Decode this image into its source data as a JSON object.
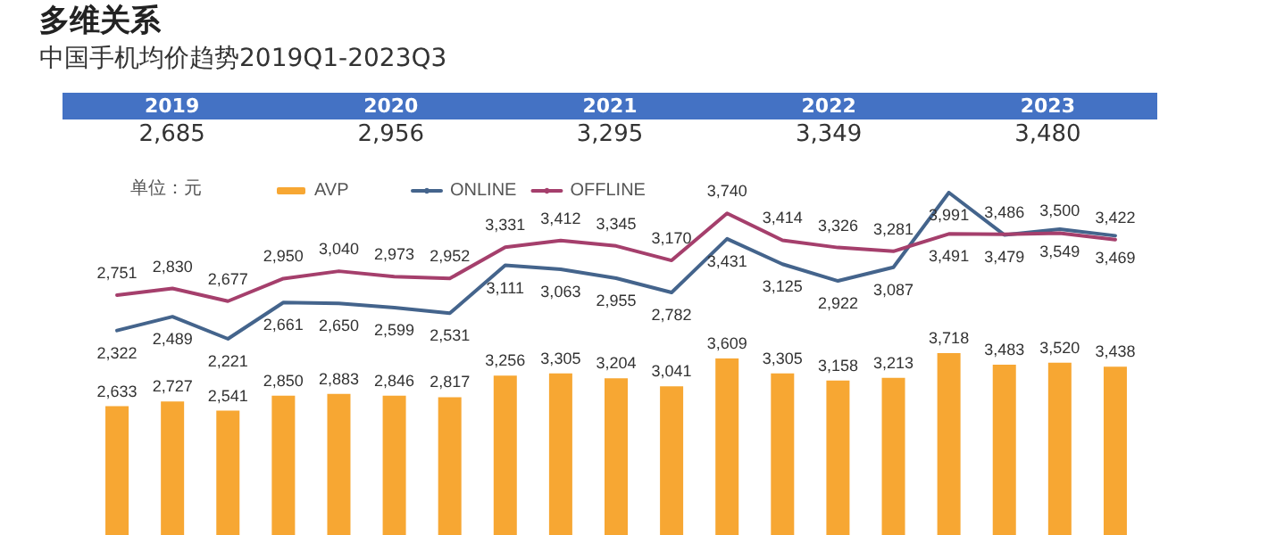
{
  "chart_data": [
    {
      "type": "line",
      "title": "多维关系",
      "subtitle": "中国手机均价趋势2019Q1-2023Q3",
      "legend_title": "单位：元",
      "annotations": [
        "2019",
        "2,685",
        "2020",
        "2,956",
        "2021",
        "3,295",
        "2022",
        "3,349",
        "2023",
        "3,480"
      ],
      "categories": [
        null,
        null,
        null,
        null,
        null,
        null,
        null,
        null,
        null,
        null,
        null,
        null,
        null,
        null,
        null,
        null,
        null,
        null,
        null
      ],
      "series": [
        {
          "name": "ONLINE",
          "color": "#44648c",
          "values": [
            2322,
            2489,
            2221,
            2661,
            2650,
            2599,
            2531,
            3111,
            3063,
            2955,
            2782,
            3431,
            3125,
            2922,
            3087,
            3991,
            3479,
            3549,
            3469
          ],
          "value_labels": [
            "2,322",
            "2,489",
            "2,221",
            "2,661",
            "2,650",
            "2,599",
            "2,531",
            "3,111",
            "3,063",
            "2,955",
            "2,782",
            "3,431",
            "3,125",
            "2,922",
            "3,087",
            "3,991",
            "3,479",
            "3,549",
            "3,469"
          ]
        },
        {
          "name": "OFFLINE",
          "color": "#a53f6c",
          "values": [
            2751,
            2830,
            2677,
            2950,
            3040,
            2973,
            2952,
            3331,
            3412,
            3345,
            3170,
            3740,
            3414,
            3326,
            3281,
            3491,
            3486,
            3500,
            3422
          ],
          "value_labels": [
            "2,751",
            "2,830",
            "2,677",
            "2,950",
            "3,040",
            "2,973",
            "2,952",
            "3,331",
            "3,412",
            "3,345",
            "3,170",
            "3,740",
            "3,414",
            "3,326",
            "3,281",
            "3,491",
            "3,486",
            "3,500",
            "3,422"
          ]
        }
      ],
      "tick_labels": false,
      "legend": "top left",
      "line_style": "solid"
    },
    {
      "type": "bar",
      "categories": [
        null,
        null,
        null,
        null,
        null,
        null,
        null,
        null,
        null,
        null,
        null,
        null,
        null,
        null,
        null,
        null,
        null,
        null,
        null
      ],
      "series": [
        {
          "name": "AVP",
          "color": "#f7a733",
          "values": [
            2633,
            2727,
            2541,
            2850,
            2883,
            2846,
            2817,
            3256,
            3305,
            3204,
            3041,
            3609,
            3305,
            3158,
            3213,
            3718,
            3483,
            3520,
            3438
          ],
          "value_labels": [
            "2,633",
            "2,727",
            "2,541",
            "2,850",
            "2,883",
            "2,846",
            "2,817",
            "3,256",
            "3,305",
            "3,204",
            "3,041",
            "3,609",
            "3,305",
            "3,158",
            "3,213",
            "3,718",
            "3,483",
            "3,520",
            "3,438"
          ]
        }
      ],
      "tick_labels": false,
      "legend": "top left"
    }
  ]
}
